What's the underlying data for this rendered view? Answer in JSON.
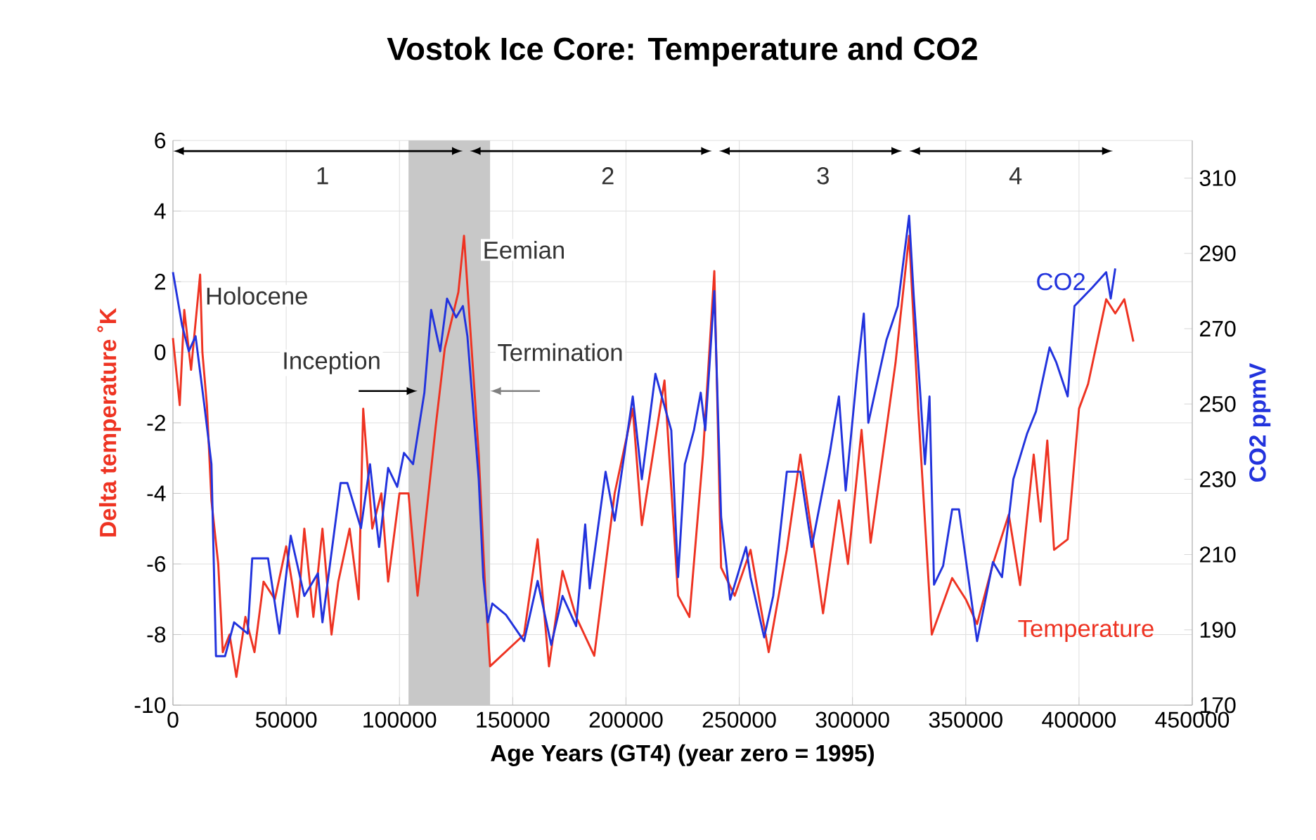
{
  "chart_data": {
    "type": "line",
    "title": "Vostok Ice Core: Temperature and CO2",
    "xlabel": "Age Years (GT4) (year zero = 1995)",
    "ylabel": "Delta temperature ˚K",
    "y2label": "CO2 ppmV",
    "xlim": [
      0,
      450000
    ],
    "xticks": [
      0,
      50000,
      100000,
      150000,
      200000,
      250000,
      300000,
      350000,
      400000,
      450000
    ],
    "ylim": [
      -10,
      6
    ],
    "yticks": [
      -10,
      -8,
      -6,
      -4,
      -2,
      0,
      2,
      4,
      6
    ],
    "y2lim": [
      170,
      320
    ],
    "y2ticks": [
      170,
      190,
      210,
      230,
      250,
      270,
      290,
      310
    ],
    "grid": true,
    "marker": "none",
    "line_style": "solid",
    "bands": [
      {
        "axis": "x",
        "from": 104000,
        "to": 140000,
        "label": null,
        "color": "#c8c8c8"
      }
    ],
    "annotations": [
      "1",
      "2",
      "3",
      "4",
      "Holocene",
      "Eemian",
      "Inception",
      "Termination"
    ],
    "series": [
      {
        "name": "Temperature",
        "color": "#ee3322",
        "x": [
          0,
          3000,
          5000,
          8000,
          12000,
          13000,
          15000,
          17000,
          20000,
          22000,
          25000,
          28000,
          32000,
          36000,
          40000,
          45000,
          50000,
          55000,
          58000,
          62000,
          66000,
          70000,
          73000,
          78000,
          82000,
          84000,
          88000,
          92000,
          95000,
          100000,
          104000,
          108000,
          116000,
          120000,
          126000,
          128500,
          135000,
          138000,
          140000,
          155000,
          161000,
          166000,
          172000,
          178000,
          186000,
          195000,
          203000,
          207000,
          217000,
          223000,
          228000,
          234000,
          239000,
          242000,
          248000,
          255000,
          263000,
          271000,
          277000,
          284000,
          287000,
          294000,
          298000,
          304000,
          308000,
          319000,
          325000,
          329000,
          335000,
          344000,
          350000,
          355000,
          362000,
          369000,
          374000,
          380000,
          383000,
          386000,
          389000,
          395000,
          400000,
          404000,
          412000,
          416000,
          420000,
          424000
        ],
        "values": [
          0.4,
          -1.5,
          1.2,
          -0.5,
          2.2,
          0.0,
          -1.5,
          -4.2,
          -6,
          -8.5,
          -8,
          -9.2,
          -7.5,
          -8.5,
          -6.5,
          -7,
          -5.5,
          -7.5,
          -5,
          -7.5,
          -5,
          -8,
          -6.5,
          -5,
          -7,
          -1.6,
          -5,
          -4,
          -6.5,
          -4,
          -4,
          -6.9,
          -2.1,
          0.1,
          1.7,
          3.3,
          -2.9,
          -6.9,
          -8.9,
          -8,
          -5.3,
          -8.9,
          -6.2,
          -7.5,
          -8.6,
          -4,
          -1.6,
          -4.9,
          -0.8,
          -6.9,
          -7.5,
          -2.9,
          2.3,
          -6.1,
          -6.9,
          -5.6,
          -8.5,
          -5.6,
          -2.9,
          -6,
          -7.4,
          -4.2,
          -6,
          -2.2,
          -5.4,
          -0.3,
          3.3,
          -1.6,
          -8,
          -6.4,
          -7,
          -7.7,
          -6,
          -4.6,
          -6.6,
          -2.9,
          -4.8,
          -2.5,
          -5.6,
          -5.3,
          -1.6,
          -0.9,
          1.5,
          1.1,
          1.5,
          0.3
        ]
      },
      {
        "name": "CO2",
        "color": "#2233dd",
        "axis": "y2",
        "x": [
          0,
          4000,
          7000,
          10000,
          14000,
          17000,
          19000,
          23000,
          27000,
          33000,
          35000,
          42000,
          47000,
          52000,
          58000,
          64000,
          66000,
          74000,
          77000,
          83000,
          87000,
          91000,
          95000,
          99000,
          102000,
          106000,
          111000,
          114000,
          118000,
          121000,
          125000,
          128000,
          130000,
          135000,
          137000,
          139000,
          141000,
          147000,
          155000,
          161000,
          167000,
          172000,
          178000,
          182000,
          184000,
          191000,
          195000,
          203000,
          207000,
          213000,
          220000,
          223000,
          226000,
          230000,
          233000,
          235000,
          239000,
          242000,
          246000,
          253000,
          255000,
          261000,
          265000,
          271000,
          277000,
          282000,
          290000,
          294000,
          297000,
          302000,
          305000,
          307000,
          315000,
          320000,
          325000,
          327000,
          331000,
          332000,
          334000,
          336000,
          340000,
          344000,
          347000,
          355000,
          362000,
          366000,
          371000,
          377000,
          381000,
          387000,
          390000,
          395000,
          398000,
          406000,
          412000,
          414000,
          416000
        ],
        "values": [
          285,
          271,
          264,
          268,
          249,
          234,
          183,
          183,
          192,
          189,
          209,
          209,
          189,
          215,
          199,
          205,
          192,
          229,
          229,
          217,
          234,
          212,
          233,
          228,
          237,
          234,
          253,
          275,
          264,
          278,
          273,
          276,
          268,
          230,
          204,
          192,
          197,
          194,
          187,
          203,
          186,
          199,
          191,
          218,
          201,
          232,
          219,
          252,
          230,
          258,
          243,
          204,
          234,
          243,
          253,
          243,
          280,
          220,
          198,
          212,
          204,
          188,
          199,
          232,
          232,
          212,
          237,
          252,
          227,
          258,
          274,
          245,
          267,
          276,
          300,
          279,
          243,
          234,
          252,
          202,
          207,
          222,
          222,
          187,
          208,
          204,
          230,
          242,
          248,
          265,
          261,
          252,
          276,
          281,
          285,
          278,
          286
        ]
      }
    ]
  }
}
